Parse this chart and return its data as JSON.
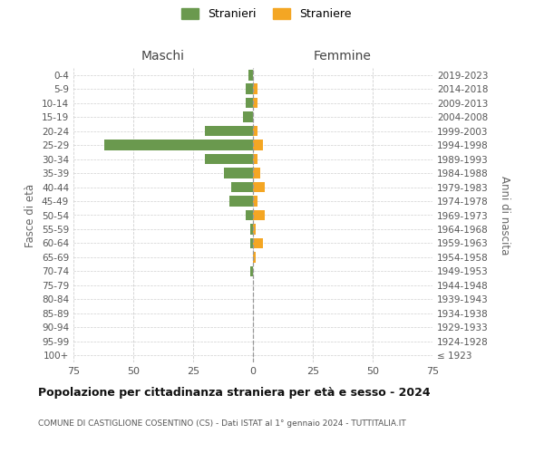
{
  "age_groups": [
    "100+",
    "95-99",
    "90-94",
    "85-89",
    "80-84",
    "75-79",
    "70-74",
    "65-69",
    "60-64",
    "55-59",
    "50-54",
    "45-49",
    "40-44",
    "35-39",
    "30-34",
    "25-29",
    "20-24",
    "15-19",
    "10-14",
    "5-9",
    "0-4"
  ],
  "birth_years": [
    "≤ 1923",
    "1924-1928",
    "1929-1933",
    "1934-1938",
    "1939-1943",
    "1944-1948",
    "1949-1953",
    "1954-1958",
    "1959-1963",
    "1964-1968",
    "1969-1973",
    "1974-1978",
    "1979-1983",
    "1984-1988",
    "1989-1993",
    "1994-1998",
    "1999-2003",
    "2004-2008",
    "2009-2013",
    "2014-2018",
    "2019-2023"
  ],
  "stranieri": [
    0,
    0,
    0,
    0,
    0,
    0,
    1,
    0,
    1,
    1,
    3,
    10,
    9,
    12,
    20,
    62,
    20,
    4,
    3,
    3,
    2
  ],
  "straniere": [
    0,
    0,
    0,
    0,
    0,
    0,
    0,
    1,
    4,
    1,
    5,
    2,
    5,
    3,
    2,
    4,
    2,
    0,
    2,
    2,
    0
  ],
  "color_stranieri": "#6a994e",
  "color_straniere": "#f4a623",
  "title": "Popolazione per cittadinanza straniera per età e sesso - 2024",
  "subtitle": "COMUNE DI CASTIGLIONE COSENTINO (CS) - Dati ISTAT al 1° gennaio 2024 - TUTTITALIA.IT",
  "ylabel_left": "Fasce di età",
  "ylabel_right": "Anni di nascita",
  "label_maschi": "Maschi",
  "label_femmine": "Femmine",
  "xlim": 75,
  "legend_stranieri": "Stranieri",
  "legend_straniere": "Straniere",
  "bg_color": "#ffffff"
}
